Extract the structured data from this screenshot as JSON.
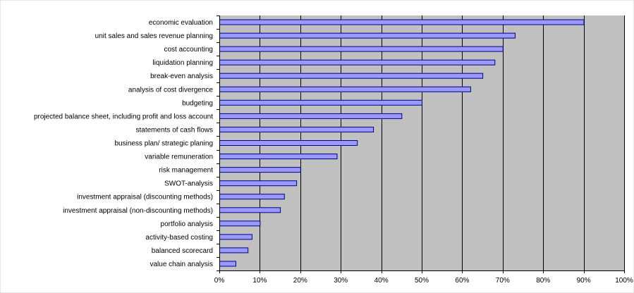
{
  "chart_data": {
    "type": "bar",
    "orientation": "horizontal",
    "title": "",
    "xlabel": "",
    "ylabel": "",
    "categories": [
      "economic evaluation",
      "unit sales and sales revenue planning",
      "cost accounting",
      "liquidation planning",
      "break-even analysis",
      "analysis of cost divergence",
      "budgeting",
      "projected balance sheet, including profit and loss account",
      "statements of cash flows",
      "business plan/ strategic planing",
      "variable remuneration",
      "risk management",
      "SWOT-analysis",
      "investment appraisal (discounting methods)",
      "investment appraisal (non-discounting methods)",
      "portfolio analysis",
      "activity-based costing",
      "balanced scorecard",
      "value chain analysis"
    ],
    "values": [
      90,
      73,
      70,
      68,
      65,
      62,
      50,
      45,
      38,
      34,
      29,
      20,
      19,
      16,
      15,
      10,
      8,
      7,
      4
    ],
    "value_unit": "percent",
    "xlim": [
      0,
      100
    ],
    "x_ticks": [
      "0%",
      "10%",
      "20%",
      "30%",
      "40%",
      "50%",
      "60%",
      "70%",
      "80%",
      "90%",
      "100%"
    ],
    "grid": "vertical",
    "legend": "none",
    "colors": {
      "bar_fill": "#9999ff",
      "bar_stroke": "#000080",
      "plot_background": "#c0c0c0",
      "gridline": "#000000"
    }
  }
}
